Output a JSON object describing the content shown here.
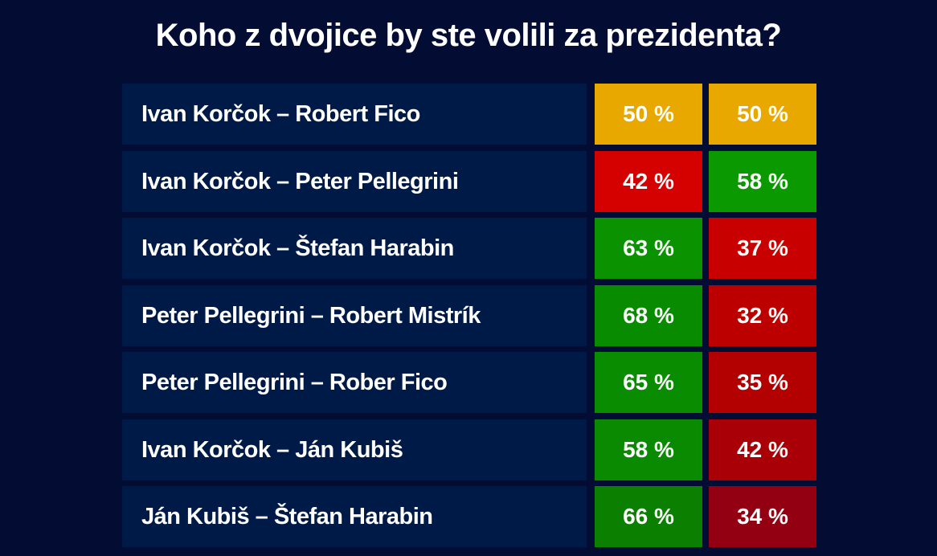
{
  "chart_data": {
    "type": "table",
    "title": "Koho z dvojice by ste volili za prezidenta?",
    "rows": [
      {
        "matchup": "Ivan Korčok – Robert Fico",
        "a": "50 %",
        "b": "50 %",
        "a_value": 50,
        "b_value": 50,
        "a_color": "#e8a800",
        "b_color": "#e8a800"
      },
      {
        "matchup": "Ivan Korčok – Peter Pellegrini",
        "a": "42 %",
        "b": "58 %",
        "a_value": 42,
        "b_value": 58,
        "a_color": "#d50000",
        "b_color": "#0a9a00"
      },
      {
        "matchup": "Ivan Korčok – Štefan Harabin",
        "a": "63 %",
        "b": "37 %",
        "a_value": 63,
        "b_value": 37,
        "a_color": "#0b9200",
        "b_color": "#c90000"
      },
      {
        "matchup": "Peter Pellegrini – Robert Mistrík",
        "a": "68 %",
        "b": "32 %",
        "a_value": 68,
        "b_value": 32,
        "a_color": "#098b00",
        "b_color": "#bc0000"
      },
      {
        "matchup": "Peter Pellegrini – Rober Fico",
        "a": "65 %",
        "b": "35 %",
        "a_value": 65,
        "b_value": 35,
        "a_color": "#098c00",
        "b_color": "#b30000"
      },
      {
        "matchup": "Ivan Korčok – Ján Kubiš",
        "a": "58 %",
        "b": "42 %",
        "a_value": 58,
        "b_value": 42,
        "a_color": "#0a8a00",
        "b_color": "#a80006"
      },
      {
        "matchup": "Ján Kubiš – Štefan Harabin",
        "a": "66 %",
        "b": "34 %",
        "a_value": 66,
        "b_value": 34,
        "a_color": "#0b7f00",
        "b_color": "#930011"
      }
    ]
  }
}
